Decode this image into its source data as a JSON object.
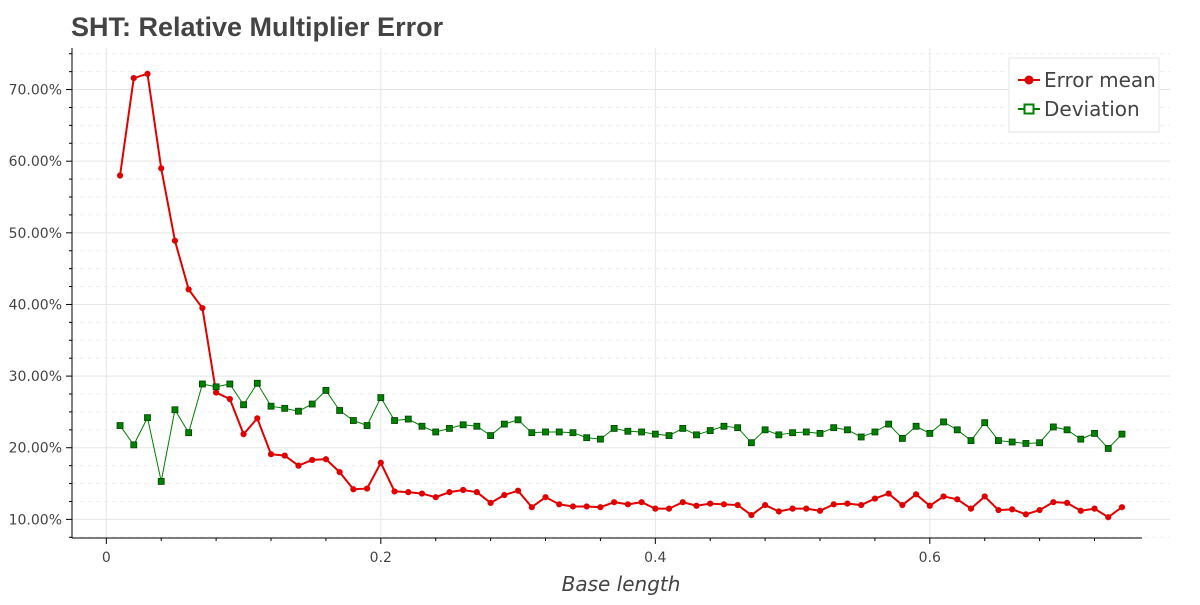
{
  "chart_data": {
    "type": "line",
    "title": "SHT: Relative Multiplier Error",
    "xlabel": "Base length",
    "ylabel": "",
    "xlim": [
      -0.025,
      0.775
    ],
    "ylim": [
      0.074,
      0.758
    ],
    "x_ticks": [
      0,
      0.2,
      0.4,
      0.6
    ],
    "x_tick_labels": [
      "0",
      "0.2",
      "0.4",
      "0.6"
    ],
    "y_ticks": [
      0.1,
      0.2,
      0.3,
      0.4,
      0.5,
      0.6,
      0.7
    ],
    "y_tick_labels": [
      "10.00%",
      "20.00%",
      "30.00%",
      "40.00%",
      "50.00%",
      "60.00%",
      "70.00%"
    ],
    "grid": true,
    "legend_position": "top-right",
    "x": [
      0.01,
      0.02,
      0.03,
      0.04,
      0.05,
      0.06,
      0.07,
      0.08,
      0.09,
      0.1,
      0.11,
      0.12,
      0.13,
      0.14,
      0.15,
      0.16,
      0.17,
      0.18,
      0.19,
      0.2,
      0.21,
      0.22,
      0.23,
      0.24,
      0.25,
      0.26,
      0.27,
      0.28,
      0.29,
      0.3,
      0.31,
      0.32,
      0.33,
      0.34,
      0.35,
      0.36,
      0.37,
      0.38,
      0.39,
      0.4,
      0.41,
      0.42,
      0.43,
      0.44,
      0.45,
      0.46,
      0.47,
      0.48,
      0.49,
      0.5,
      0.51,
      0.52,
      0.53,
      0.54,
      0.55,
      0.56,
      0.57,
      0.58,
      0.59,
      0.6,
      0.61,
      0.62,
      0.63,
      0.64,
      0.65,
      0.66,
      0.67,
      0.68,
      0.69,
      0.7,
      0.71,
      0.72,
      0.73,
      0.74
    ],
    "series": [
      {
        "name": "Error mean",
        "color": "#e00000",
        "marker": "circle",
        "values": [
          0.58,
          0.716,
          0.722,
          0.59,
          0.489,
          0.421,
          0.395,
          0.277,
          0.268,
          0.219,
          0.241,
          0.191,
          0.189,
          0.175,
          0.183,
          0.184,
          0.166,
          0.142,
          0.143,
          0.179,
          0.139,
          0.138,
          0.136,
          0.131,
          0.138,
          0.141,
          0.138,
          0.123,
          0.134,
          0.14,
          0.117,
          0.131,
          0.121,
          0.118,
          0.118,
          0.117,
          0.124,
          0.121,
          0.124,
          0.115,
          0.115,
          0.124,
          0.119,
          0.122,
          0.121,
          0.12,
          0.106,
          0.12,
          0.111,
          0.115,
          0.115,
          0.112,
          0.121,
          0.122,
          0.12,
          0.129,
          0.136,
          0.12,
          0.135,
          0.119,
          0.132,
          0.128,
          0.115,
          0.132,
          0.113,
          0.114,
          0.107,
          0.113,
          0.124,
          0.123,
          0.112,
          0.115,
          0.103,
          0.117
        ]
      },
      {
        "name": "Deviation",
        "color": "#008000",
        "marker": "square",
        "values": [
          0.231,
          0.204,
          0.242,
          0.153,
          0.253,
          0.221,
          0.289,
          0.285,
          0.289,
          0.26,
          0.29,
          0.258,
          0.255,
          0.251,
          0.261,
          0.28,
          0.252,
          0.238,
          0.231,
          0.27,
          0.238,
          0.24,
          0.23,
          0.222,
          0.227,
          0.232,
          0.23,
          0.217,
          0.233,
          0.239,
          0.221,
          0.222,
          0.222,
          0.221,
          0.214,
          0.212,
          0.227,
          0.223,
          0.222,
          0.219,
          0.217,
          0.227,
          0.218,
          0.224,
          0.23,
          0.228,
          0.207,
          0.225,
          0.218,
          0.221,
          0.222,
          0.22,
          0.228,
          0.225,
          0.215,
          0.222,
          0.233,
          0.213,
          0.23,
          0.22,
          0.236,
          0.225,
          0.21,
          0.235,
          0.21,
          0.208,
          0.206,
          0.207,
          0.229,
          0.225,
          0.212,
          0.22,
          0.199,
          0.219
        ]
      }
    ]
  }
}
